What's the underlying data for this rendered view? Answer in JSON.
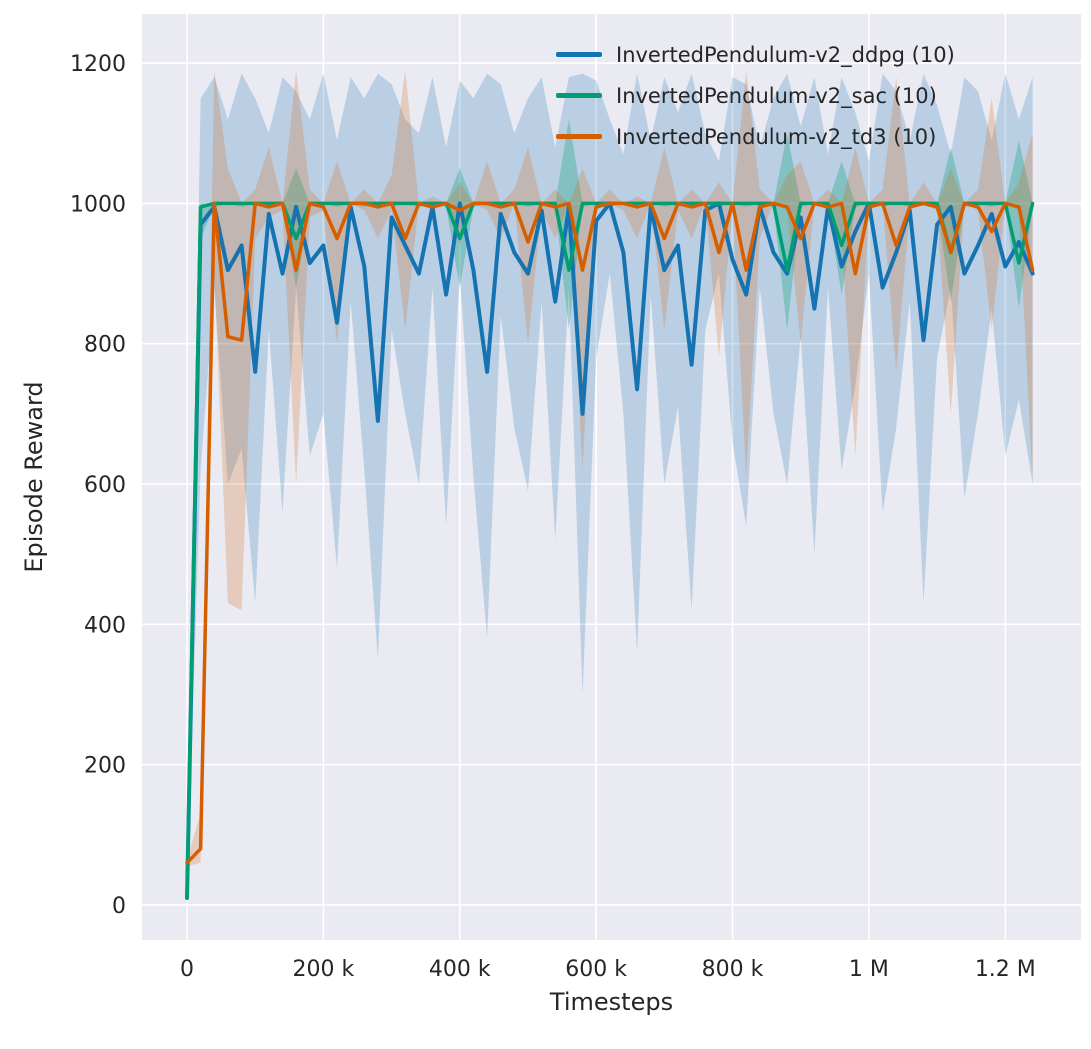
{
  "figure": {
    "background": "#ffffff"
  },
  "axes": {
    "background": "#eaeaf2",
    "grid_color": "#ffffff",
    "tick_color": "#262626",
    "xlabel": "Timesteps",
    "ylabel": "Episode Reward"
  },
  "legend": {
    "entries": [
      {
        "label": "InvertedPendulum-v2_ddpg (10)",
        "color": "#1673b1"
      },
      {
        "label": "InvertedPendulum-v2_sac (10)",
        "color": "#029e73"
      },
      {
        "label": "InvertedPendulum-v2_td3 (10)",
        "color": "#d55e00"
      }
    ]
  },
  "chart_data": {
    "type": "line",
    "title": "",
    "xlabel": "Timesteps",
    "ylabel": "Episode Reward",
    "xlim": [
      -66000,
      1311000
    ],
    "ylim": [
      -50,
      1270
    ],
    "grid": true,
    "legend_position": "upper right",
    "xticks": [
      {
        "value": 0,
        "label": "0"
      },
      {
        "value": 200000,
        "label": "200 k"
      },
      {
        "value": 400000,
        "label": "400 k"
      },
      {
        "value": 600000,
        "label": "600 k"
      },
      {
        "value": 800000,
        "label": "800 k"
      },
      {
        "value": 1000000,
        "label": "1 M"
      },
      {
        "value": 1200000,
        "label": "1.2 M"
      }
    ],
    "yticks": [
      {
        "value": 0,
        "label": "0"
      },
      {
        "value": 200,
        "label": "200"
      },
      {
        "value": 400,
        "label": "400"
      },
      {
        "value": 600,
        "label": "600"
      },
      {
        "value": 800,
        "label": "800"
      },
      {
        "value": 1000,
        "label": "1000"
      },
      {
        "value": 1200,
        "label": "1200"
      }
    ],
    "x": [
      0,
      20000,
      40000,
      60000,
      80000,
      100000,
      120000,
      140000,
      160000,
      180000,
      200000,
      220000,
      240000,
      260000,
      280000,
      300000,
      320000,
      340000,
      360000,
      380000,
      400000,
      420000,
      440000,
      460000,
      480000,
      500000,
      520000,
      540000,
      560000,
      580000,
      600000,
      620000,
      640000,
      660000,
      680000,
      700000,
      720000,
      740000,
      760000,
      780000,
      800000,
      820000,
      840000,
      860000,
      880000,
      900000,
      920000,
      940000,
      960000,
      980000,
      1000000,
      1020000,
      1040000,
      1060000,
      1080000,
      1100000,
      1120000,
      1140000,
      1160000,
      1180000,
      1200000,
      1220000,
      1240000
    ],
    "series": [
      {
        "name": "InvertedPendulum-v2_ddpg (10)",
        "color": "#1673b1",
        "width": 4,
        "band_opacity": 0.22,
        "values": [
          10,
          970,
          995,
          905,
          940,
          760,
          985,
          900,
          995,
          915,
          940,
          830,
          995,
          910,
          690,
          980,
          940,
          900,
          995,
          870,
          1000,
          905,
          760,
          985,
          930,
          900,
          990,
          860,
          995,
          700,
          975,
          1000,
          930,
          735,
          995,
          905,
          940,
          770,
          990,
          1000,
          920,
          870,
          995,
          930,
          900,
          980,
          850,
          995,
          910,
          960,
          1000,
          880,
          930,
          990,
          805,
          970,
          995,
          900,
          940,
          985,
          910,
          945,
          900
        ],
        "band_low": [
          10,
          620,
          880,
          600,
          650,
          430,
          820,
          560,
          880,
          640,
          700,
          480,
          860,
          620,
          350,
          820,
          700,
          600,
          880,
          540,
          900,
          610,
          380,
          840,
          680,
          590,
          860,
          520,
          880,
          300,
          780,
          900,
          700,
          360,
          870,
          600,
          710,
          420,
          820,
          900,
          660,
          540,
          880,
          700,
          600,
          810,
          500,
          880,
          620,
          740,
          900,
          560,
          680,
          860,
          430,
          780,
          880,
          580,
          700,
          850,
          640,
          720,
          600
        ],
        "band_high": [
          10,
          1150,
          1180,
          1120,
          1185,
          1150,
          1100,
          1180,
          1160,
          1120,
          1185,
          1090,
          1180,
          1150,
          1185,
          1170,
          1120,
          1100,
          1180,
          1080,
          1175,
          1150,
          1185,
          1170,
          1100,
          1150,
          1180,
          1080,
          1180,
          1185,
          1175,
          1120,
          1070,
          1185,
          1090,
          1180,
          1130,
          1185,
          1100,
          1060,
          1180,
          1170,
          1080,
          1150,
          1185,
          1110,
          1180,
          1070,
          1180,
          1130,
          1060,
          1185,
          1160,
          1090,
          1185,
          1140,
          1070,
          1180,
          1160,
          1090,
          1185,
          1120,
          1180
        ]
      },
      {
        "name": "InvertedPendulum-v2_sac (10)",
        "color": "#029e73",
        "width": 3.5,
        "band_opacity": 0.3,
        "values": [
          10,
          995,
          1000,
          1000,
          1000,
          1000,
          1000,
          1000,
          950,
          1000,
          1000,
          1000,
          1000,
          1000,
          1000,
          1000,
          1000,
          1000,
          1000,
          1000,
          950,
          1000,
          1000,
          1000,
          1000,
          1000,
          1000,
          1000,
          905,
          1000,
          1000,
          1000,
          1000,
          1000,
          1000,
          1000,
          1000,
          1000,
          1000,
          1000,
          1000,
          1000,
          1000,
          1000,
          905,
          1000,
          1000,
          1000,
          940,
          1000,
          1000,
          1000,
          1000,
          1000,
          1000,
          1000,
          930,
          1000,
          1000,
          1000,
          1000,
          915,
          1000
        ],
        "band_low": [
          8,
          950,
          995,
          1000,
          995,
          1000,
          995,
          1000,
          880,
          995,
          1000,
          995,
          1000,
          995,
          1000,
          995,
          1000,
          995,
          1000,
          995,
          880,
          995,
          1000,
          995,
          1000,
          995,
          1000,
          995,
          820,
          995,
          1000,
          995,
          1000,
          995,
          1000,
          995,
          1000,
          995,
          1000,
          995,
          1000,
          995,
          1000,
          995,
          820,
          995,
          1000,
          995,
          870,
          995,
          1000,
          995,
          1000,
          995,
          1000,
          995,
          860,
          995,
          1000,
          995,
          1000,
          850,
          995
        ],
        "band_high": [
          12,
          1000,
          1000,
          1000,
          1000,
          1000,
          1000,
          1000,
          1050,
          1000,
          1000,
          1000,
          1000,
          1000,
          1000,
          1000,
          1000,
          1000,
          1000,
          1000,
          1050,
          1000,
          1000,
          1000,
          1000,
          1000,
          1000,
          1000,
          1120,
          1000,
          1000,
          1000,
          1000,
          1000,
          1000,
          1000,
          1000,
          1000,
          1000,
          1000,
          1000,
          1000,
          1000,
          1000,
          1100,
          1000,
          1000,
          1000,
          1060,
          1000,
          1000,
          1000,
          1000,
          1000,
          1000,
          1000,
          1080,
          1000,
          1000,
          1000,
          1000,
          1090,
          1000
        ]
      },
      {
        "name": "InvertedPendulum-v2_td3 (10)",
        "color": "#d55e00",
        "width": 3.5,
        "band_opacity": 0.22,
        "values": [
          60,
          80,
          1000,
          810,
          805,
          1000,
          995,
          1000,
          905,
          1000,
          995,
          950,
          1000,
          1000,
          995,
          1000,
          950,
          1000,
          995,
          1000,
          990,
          1000,
          1000,
          995,
          1000,
          945,
          1000,
          995,
          1000,
          905,
          995,
          1000,
          1000,
          995,
          1000,
          950,
          1000,
          995,
          1000,
          930,
          1000,
          905,
          995,
          1000,
          995,
          950,
          1000,
          995,
          1000,
          900,
          995,
          1000,
          940,
          995,
          1000,
          995,
          930,
          1000,
          995,
          960,
          1000,
          995,
          905
        ],
        "band_low": [
          55,
          60,
          900,
          430,
          420,
          950,
          980,
          990,
          600,
          980,
          990,
          800,
          1000,
          990,
          950,
          990,
          820,
          1000,
          990,
          1000,
          940,
          1000,
          990,
          950,
          1000,
          800,
          990,
          950,
          1000,
          620,
          990,
          1000,
          990,
          950,
          1000,
          820,
          990,
          950,
          1000,
          780,
          990,
          610,
          950,
          1000,
          990,
          800,
          1000,
          990,
          950,
          640,
          990,
          1000,
          760,
          990,
          1000,
          990,
          700,
          1000,
          990,
          820,
          1000,
          990,
          600
        ],
        "band_high": [
          65,
          130,
          1190,
          1050,
          1000,
          1020,
          1080,
          1000,
          1190,
          1020,
          1000,
          1060,
          1000,
          1020,
          1000,
          1040,
          1190,
          1000,
          1010,
          1000,
          1030,
          1000,
          1060,
          1000,
          1020,
          1080,
          1000,
          1020,
          1000,
          1050,
          1000,
          1020,
          1000,
          1010,
          1000,
          1080,
          1000,
          1020,
          1000,
          1030,
          1000,
          1190,
          1020,
          1000,
          1040,
          1060,
          1000,
          1020,
          1000,
          1080,
          1000,
          1020,
          1180,
          1000,
          1030,
          1000,
          1050,
          1000,
          1020,
          1150,
          1000,
          1030,
          1100
        ]
      }
    ]
  }
}
